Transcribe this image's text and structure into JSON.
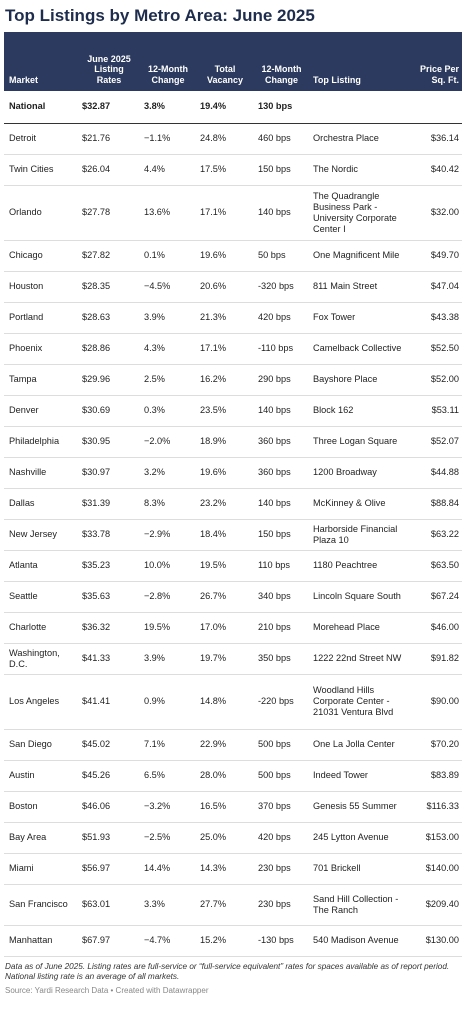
{
  "title": "Top Listings by Metro Area: June 2025",
  "columns": [
    "Market",
    "June 2025 Listing Rates",
    "12-Month Change",
    "Total Vacancy",
    "12-Month Change",
    "Top Listing",
    "Price Per Sq. Ft."
  ],
  "national": {
    "market": "National",
    "rate": "$32.87",
    "rate_change": "3.8%",
    "vacancy": "19.4%",
    "vac_change": "130 bps",
    "listing": "",
    "price": ""
  },
  "rows": [
    {
      "market": "Detroit",
      "rate": "$21.76",
      "rate_change": "−1.1%",
      "vacancy": "24.8%",
      "vac_change": "460 bps",
      "listing": "Orchestra Place",
      "price": "$36.14"
    },
    {
      "market": "Twin Cities",
      "rate": "$26.04",
      "rate_change": "4.4%",
      "vacancy": "17.5%",
      "vac_change": "150 bps",
      "listing": "The Nordic",
      "price": "$40.42"
    },
    {
      "market": "Orlando",
      "rate": "$27.78",
      "rate_change": "13.6%",
      "vacancy": "17.1%",
      "vac_change": "140 bps",
      "listing": "The Quadrangle Business Park - University Corporate Center I",
      "price": "$32.00"
    },
    {
      "market": "Chicago",
      "rate": "$27.82",
      "rate_change": "0.1%",
      "vacancy": "19.6%",
      "vac_change": "50 bps",
      "listing": "One Magnificent Mile",
      "price": "$49.70"
    },
    {
      "market": "Houston",
      "rate": "$28.35",
      "rate_change": "−4.5%",
      "vacancy": "20.6%",
      "vac_change": "-320 bps",
      "listing": "811 Main Street",
      "price": "$47.04"
    },
    {
      "market": "Portland",
      "rate": "$28.63",
      "rate_change": "3.9%",
      "vacancy": "21.3%",
      "vac_change": "420 bps",
      "listing": "Fox Tower",
      "price": "$43.38"
    },
    {
      "market": "Phoenix",
      "rate": "$28.86",
      "rate_change": "4.3%",
      "vacancy": "17.1%",
      "vac_change": "-110 bps",
      "listing": "Camelback Collective",
      "price": "$52.50"
    },
    {
      "market": "Tampa",
      "rate": "$29.96",
      "rate_change": "2.5%",
      "vacancy": "16.2%",
      "vac_change": "290 bps",
      "listing": "Bayshore Place",
      "price": "$52.00"
    },
    {
      "market": "Denver",
      "rate": "$30.69",
      "rate_change": "0.3%",
      "vacancy": "23.5%",
      "vac_change": "140 bps",
      "listing": "Block 162",
      "price": "$53.11"
    },
    {
      "market": "Philadelphia",
      "rate": "$30.95",
      "rate_change": "−2.0%",
      "vacancy": "18.9%",
      "vac_change": "360 bps",
      "listing": "Three Logan Square",
      "price": "$52.07"
    },
    {
      "market": "Nashville",
      "rate": "$30.97",
      "rate_change": "3.2%",
      "vacancy": "19.6%",
      "vac_change": "360 bps",
      "listing": "1200 Broadway",
      "price": "$44.88"
    },
    {
      "market": "Dallas",
      "rate": "$31.39",
      "rate_change": "8.3%",
      "vacancy": "23.2%",
      "vac_change": "140 bps",
      "listing": "McKinney & Olive",
      "price": "$88.84"
    },
    {
      "market": "New Jersey",
      "rate": "$33.78",
      "rate_change": "−2.9%",
      "vacancy": "18.4%",
      "vac_change": "150 bps",
      "listing": "Harborside Financial Plaza 10",
      "price": "$63.22"
    },
    {
      "market": "Atlanta",
      "rate": "$35.23",
      "rate_change": "10.0%",
      "vacancy": "19.5%",
      "vac_change": "110 bps",
      "listing": "1180 Peachtree",
      "price": "$63.50"
    },
    {
      "market": "Seattle",
      "rate": "$35.63",
      "rate_change": "−2.8%",
      "vacancy": "26.7%",
      "vac_change": "340 bps",
      "listing": "Lincoln Square South",
      "price": "$67.24"
    },
    {
      "market": "Charlotte",
      "rate": "$36.32",
      "rate_change": "19.5%",
      "vacancy": "17.0%",
      "vac_change": "210 bps",
      "listing": "Morehead Place",
      "price": "$46.00"
    },
    {
      "market": "Washington, D.C.",
      "rate": "$41.33",
      "rate_change": "3.9%",
      "vacancy": "19.7%",
      "vac_change": "350 bps",
      "listing": "1222 22nd Street NW",
      "price": "$91.82"
    },
    {
      "market": "Los Angeles",
      "rate": "$41.41",
      "rate_change": "0.9%",
      "vacancy": "14.8%",
      "vac_change": "-220 bps",
      "listing": "Woodland Hills Corporate Center - 21031 Ventura Blvd",
      "price": "$90.00"
    },
    {
      "market": "San Diego",
      "rate": "$45.02",
      "rate_change": "7.1%",
      "vacancy": "22.9%",
      "vac_change": "500 bps",
      "listing": "One La Jolla Center",
      "price": "$70.20"
    },
    {
      "market": "Austin",
      "rate": "$45.26",
      "rate_change": "6.5%",
      "vacancy": "28.0%",
      "vac_change": "500 bps",
      "listing": "Indeed Tower",
      "price": "$83.89"
    },
    {
      "market": "Boston",
      "rate": "$46.06",
      "rate_change": "−3.2%",
      "vacancy": "16.5%",
      "vac_change": "370 bps",
      "listing": "Genesis 55 Summer",
      "price": "$116.33"
    },
    {
      "market": "Bay Area",
      "rate": "$51.93",
      "rate_change": "−2.5%",
      "vacancy": "25.0%",
      "vac_change": "420 bps",
      "listing": "245 Lytton Avenue",
      "price": "$153.00"
    },
    {
      "market": "Miami",
      "rate": "$56.97",
      "rate_change": "14.4%",
      "vacancy": "14.3%",
      "vac_change": "230 bps",
      "listing": "701 Brickell",
      "price": "$140.00"
    },
    {
      "market": "San Francisco",
      "rate": "$63.01",
      "rate_change": "3.3%",
      "vacancy": "27.7%",
      "vac_change": "230 bps",
      "listing": "Sand Hill Collection - The Ranch",
      "price": "$209.40"
    },
    {
      "market": "Manhattan",
      "rate": "$67.97",
      "rate_change": "−4.7%",
      "vacancy": "15.2%",
      "vac_change": "-130 bps",
      "listing": "540 Madison Avenue",
      "price": "$130.00"
    }
  ],
  "row_heights": [
    31,
    31,
    55,
    31,
    31,
    31,
    31,
    31,
    31,
    31,
    31,
    31,
    31,
    31,
    31,
    31,
    31,
    55,
    31,
    31,
    31,
    31,
    31,
    41,
    31
  ],
  "note": "Data as of June 2025. Listing rates are full-service or “full-service equivalent” rates for spaces available as of report period. National listing rate is an average of all markets.",
  "source": "Source: Yardi Research Data • Created with Datawrapper",
  "chart_data": {
    "type": "table",
    "title": "Top Listings by Metro Area: June 2025",
    "columns": [
      "Market",
      "June 2025 Listing Rates",
      "12-Month Change",
      "Total Vacancy",
      "12-Month Change",
      "Top Listing",
      "Price Per Sq. Ft."
    ]
  }
}
